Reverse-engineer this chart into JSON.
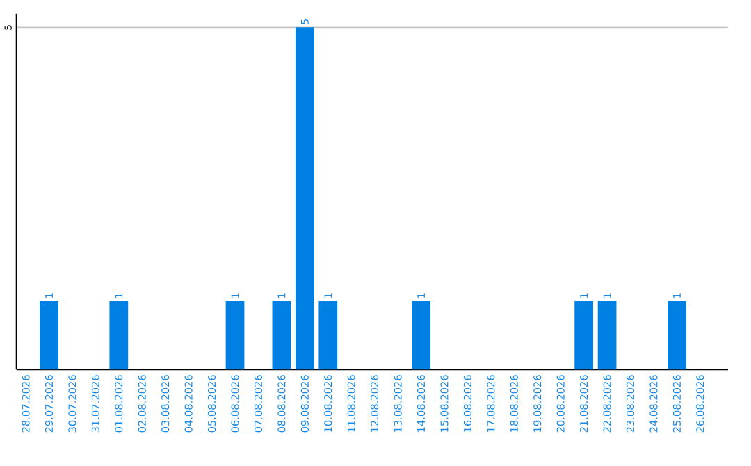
{
  "chart_data": {
    "type": "bar",
    "categories": [
      "28.07.2026",
      "29.07.2026",
      "30.07.2026",
      "31.07.2026",
      "01.08.2026",
      "02.08.2026",
      "03.08.2026",
      "04.08.2026",
      "05.08.2026",
      "06.08.2026",
      "07.08.2026",
      "08.08.2026",
      "09.08.2026",
      "10.08.2026",
      "11.08.2026",
      "12.08.2026",
      "13.08.2026",
      "14.08.2026",
      "15.08.2026",
      "16.08.2026",
      "17.08.2026",
      "18.08.2026",
      "19.08.2026",
      "20.08.2026",
      "21.08.2026",
      "22.08.2026",
      "23.08.2026",
      "24.08.2026",
      "25.08.2026",
      "26.08.2026"
    ],
    "values": [
      0,
      1,
      0,
      0,
      1,
      0,
      0,
      0,
      0,
      1,
      0,
      1,
      5,
      1,
      0,
      0,
      0,
      1,
      0,
      0,
      0,
      0,
      0,
      0,
      1,
      1,
      0,
      0,
      1,
      0
    ],
    "value_labels": [
      null,
      "1",
      null,
      null,
      "1",
      null,
      null,
      null,
      null,
      "1",
      null,
      "1",
      "5",
      "1",
      null,
      null,
      null,
      "1",
      null,
      null,
      null,
      null,
      null,
      null,
      "1",
      "1",
      null,
      null,
      "1",
      null
    ],
    "color": "#0080e3",
    "ylim": [
      0,
      5.2
    ],
    "yticks": [
      5
    ],
    "grid": "y"
  }
}
